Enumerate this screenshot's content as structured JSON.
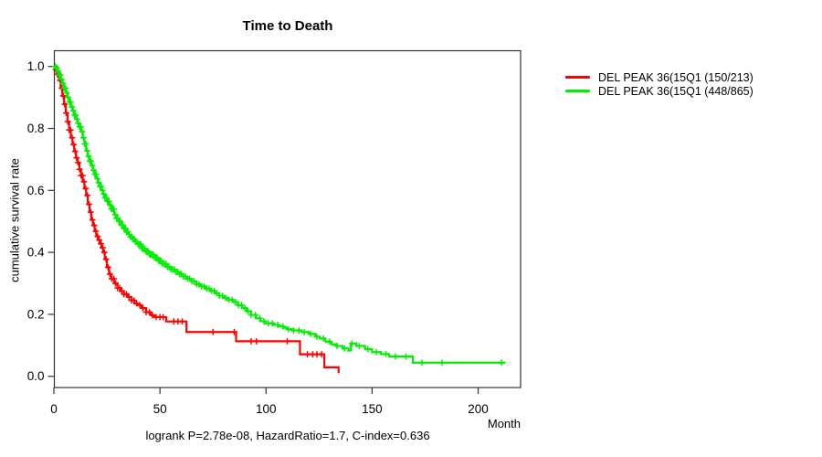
{
  "title": "Time to Death",
  "caption": "logrank P=2.78e-08, HazardRatio=1.7, C-index=0.636",
  "colors": {
    "series1": "#ff0000",
    "series2": "#00ee00",
    "axis": "#333333",
    "text": "#000000"
  },
  "legend": {
    "items": [
      {
        "label": "DEL PEAK 36(15Q1 (150/213)",
        "color": "#ff0000"
      },
      {
        "label": "DEL PEAK 36(15Q1 (448/865)",
        "color": "#00ee00"
      }
    ]
  },
  "chart_data": {
    "type": "line",
    "subtype": "kaplan-meier-step",
    "title": "Time to Death",
    "xlabel": "Month",
    "ylabel": "cumulative survival rate",
    "xlim": [
      0,
      220
    ],
    "ylim": [
      0,
      1
    ],
    "x_ticks": [
      0,
      50,
      100,
      150,
      200
    ],
    "x_tick_labels": [
      "0",
      "50",
      "100",
      "150",
      "200"
    ],
    "y_ticks": [
      0,
      0.2,
      0.4,
      0.6,
      0.8,
      1
    ],
    "y_tick_labels": [
      "0.0",
      "0.2",
      "0.4",
      "0.6",
      "0.8",
      "1.0"
    ],
    "grid": false,
    "legend_position": "right-outside",
    "series": [
      {
        "name": "DEL PEAK 36(15Q1 (150/213)",
        "color": "#ff0000",
        "points": [
          [
            0,
            1.0
          ],
          [
            0.8,
            0.99
          ],
          [
            1.6,
            0.975
          ],
          [
            2.4,
            0.955
          ],
          [
            3.2,
            0.93
          ],
          [
            4,
            0.905
          ],
          [
            4.8,
            0.878
          ],
          [
            5.6,
            0.85
          ],
          [
            6.4,
            0.822
          ],
          [
            7.2,
            0.795
          ],
          [
            8,
            0.77
          ],
          [
            8.8,
            0.748
          ],
          [
            9.6,
            0.726
          ],
          [
            10.4,
            0.705
          ],
          [
            11.2,
            0.69
          ],
          [
            12,
            0.668
          ],
          [
            12.8,
            0.648
          ],
          [
            13.6,
            0.628
          ],
          [
            14.4,
            0.606
          ],
          [
            15.2,
            0.584
          ],
          [
            16,
            0.555
          ],
          [
            16.8,
            0.53
          ],
          [
            17.6,
            0.505
          ],
          [
            18.4,
            0.487
          ],
          [
            19.2,
            0.468
          ],
          [
            20,
            0.452
          ],
          [
            20.8,
            0.44
          ],
          [
            21.6,
            0.428
          ],
          [
            22.4,
            0.415
          ],
          [
            23.2,
            0.4
          ],
          [
            24,
            0.378
          ],
          [
            25,
            0.352
          ],
          [
            26,
            0.33
          ],
          [
            27,
            0.315
          ],
          [
            28.4,
            0.3
          ],
          [
            30,
            0.285
          ],
          [
            31.5,
            0.275
          ],
          [
            33,
            0.265
          ],
          [
            34.9,
            0.256
          ],
          [
            36.5,
            0.245
          ],
          [
            38,
            0.235
          ],
          [
            39.2,
            0.23
          ],
          [
            41.4,
            0.22
          ],
          [
            43.5,
            0.207
          ],
          [
            45.7,
            0.197
          ],
          [
            47.5,
            0.191
          ],
          [
            52.9,
            0.177
          ],
          [
            62.5,
            0.143
          ],
          [
            85.9,
            0.113
          ],
          [
            116,
            0.071
          ],
          [
            127.5,
            0.029
          ],
          [
            134.2,
            0.01
          ]
        ],
        "censor_months": [
          0.9,
          1.6,
          2.3,
          3,
          3.7,
          4.4,
          5.1,
          5.8,
          6.5,
          7.2,
          7.9,
          8.6,
          9.3,
          10,
          10.7,
          11.4,
          12.1,
          12.8,
          13.5,
          14.2,
          15,
          15.8,
          16.6,
          17.4,
          18.2,
          19,
          19.8,
          20.6,
          21.4,
          22.2,
          23,
          23.8,
          24.6,
          25.5,
          26.4,
          27.3,
          28.2,
          29.1,
          30,
          31,
          32,
          33,
          34.2,
          35.4,
          36.6,
          37.8,
          39,
          40.5,
          42,
          43.5,
          45,
          46.5,
          48.2,
          50,
          51.5,
          56.5,
          58.5,
          60.5,
          75,
          85,
          93,
          95.5,
          110,
          119.5,
          122,
          124,
          126.2
        ]
      },
      {
        "name": "DEL PEAK 36(15Q1 (448/865)",
        "color": "#00ee00",
        "points": [
          [
            0,
            1.0
          ],
          [
            0.8,
            0.995
          ],
          [
            1.6,
            0.985
          ],
          [
            2.4,
            0.972
          ],
          [
            3.2,
            0.958
          ],
          [
            4,
            0.945
          ],
          [
            4.8,
            0.93
          ],
          [
            5.6,
            0.915
          ],
          [
            6.4,
            0.9
          ],
          [
            7.2,
            0.885
          ],
          [
            8,
            0.87
          ],
          [
            8.8,
            0.857
          ],
          [
            9.6,
            0.843
          ],
          [
            10.4,
            0.83
          ],
          [
            11.2,
            0.817
          ],
          [
            12,
            0.805
          ],
          [
            12.8,
            0.79
          ],
          [
            13.6,
            0.77
          ],
          [
            14.4,
            0.75
          ],
          [
            15.2,
            0.728
          ],
          [
            16,
            0.71
          ],
          [
            16.8,
            0.695
          ],
          [
            17.6,
            0.68
          ],
          [
            18.4,
            0.665
          ],
          [
            19.2,
            0.652
          ],
          [
            20,
            0.638
          ],
          [
            20.8,
            0.625
          ],
          [
            21.6,
            0.613
          ],
          [
            22.4,
            0.6
          ],
          [
            23.2,
            0.588
          ],
          [
            24.1,
            0.576
          ],
          [
            25,
            0.565
          ],
          [
            26,
            0.553
          ],
          [
            27,
            0.54
          ],
          [
            28.4,
            0.522
          ],
          [
            29.5,
            0.51
          ],
          [
            30.6,
            0.5
          ],
          [
            31.6,
            0.488
          ],
          [
            32.7,
            0.477
          ],
          [
            34,
            0.466
          ],
          [
            35,
            0.458
          ],
          [
            36,
            0.45
          ],
          [
            37,
            0.443
          ],
          [
            38.2,
            0.434
          ],
          [
            39.5,
            0.426
          ],
          [
            41.4,
            0.413
          ],
          [
            43,
            0.403
          ],
          [
            45,
            0.393
          ],
          [
            47,
            0.383
          ],
          [
            49,
            0.373
          ],
          [
            51,
            0.363
          ],
          [
            53,
            0.353
          ],
          [
            55,
            0.345
          ],
          [
            57,
            0.337
          ],
          [
            59,
            0.33
          ],
          [
            61,
            0.322
          ],
          [
            63,
            0.315
          ],
          [
            65,
            0.307
          ],
          [
            67.2,
            0.297
          ],
          [
            69,
            0.29
          ],
          [
            71.5,
            0.283
          ],
          [
            73.7,
            0.276
          ],
          [
            75.8,
            0.268
          ],
          [
            78,
            0.26
          ],
          [
            80,
            0.253
          ],
          [
            82,
            0.247
          ],
          [
            84.4,
            0.24
          ],
          [
            86.6,
            0.23
          ],
          [
            88.7,
            0.22
          ],
          [
            90.9,
            0.21
          ],
          [
            93,
            0.198
          ],
          [
            95.2,
            0.187
          ],
          [
            97.3,
            0.178
          ],
          [
            99.5,
            0.171
          ],
          [
            103.8,
            0.166
          ],
          [
            106,
            0.161
          ],
          [
            108.1,
            0.157
          ],
          [
            110.3,
            0.152
          ],
          [
            112.4,
            0.148
          ],
          [
            116.7,
            0.143
          ],
          [
            120,
            0.137
          ],
          [
            123.2,
            0.128
          ],
          [
            125.3,
            0.122
          ],
          [
            128,
            0.112
          ],
          [
            130.9,
            0.103
          ],
          [
            133.1,
            0.098
          ],
          [
            136,
            0.09
          ],
          [
            138.8,
            0.083
          ],
          [
            140,
            0.106
          ],
          [
            142.6,
            0.098
          ],
          [
            146.7,
            0.088
          ],
          [
            150,
            0.078
          ],
          [
            154.1,
            0.072
          ],
          [
            158,
            0.064
          ],
          [
            169.2,
            0.044
          ],
          [
            212.9,
            0.044
          ]
        ],
        "censor_months": [
          0.7,
          1.3,
          1.9,
          2.5,
          3.1,
          3.7,
          4.3,
          4.9,
          5.5,
          6.1,
          6.7,
          7.3,
          7.9,
          8.5,
          9.1,
          9.7,
          10.3,
          10.9,
          11.5,
          12.1,
          12.7,
          13.3,
          13.9,
          14.5,
          15.1,
          15.7,
          16.3,
          16.9,
          17.5,
          18.1,
          18.7,
          19.3,
          19.9,
          20.5,
          21.1,
          21.7,
          22.3,
          22.9,
          23.5,
          24.1,
          24.7,
          25.3,
          25.9,
          26.5,
          27.1,
          27.7,
          28.3,
          28.9,
          29.5,
          30.1,
          30.7,
          31.3,
          31.9,
          32.5,
          33.1,
          33.7,
          34.3,
          34.9,
          35.5,
          36.1,
          36.7,
          37.3,
          37.9,
          38.5,
          39.1,
          39.7,
          40.3,
          40.9,
          41.5,
          42.1,
          42.7,
          43.3,
          43.9,
          44.5,
          45.1,
          45.7,
          46.3,
          46.9,
          47.5,
          48.1,
          48.7,
          49.3,
          49.9,
          50.5,
          51.2,
          52,
          52.8,
          53.6,
          54.4,
          55.2,
          56,
          56.8,
          57.6,
          58.4,
          59.2,
          60,
          61,
          62,
          63,
          64,
          65,
          66,
          67.2,
          68.4,
          69.6,
          70.8,
          72,
          73.2,
          74.4,
          75.6,
          76.8,
          78,
          79.5,
          81,
          82.5,
          84,
          85.5,
          87,
          88.5,
          90,
          91.5,
          93,
          95,
          97,
          99,
          101,
          103,
          105.5,
          108,
          110.5,
          113,
          115.5,
          118,
          121,
          124,
          127,
          130,
          133.5,
          137,
          140.5,
          144,
          148,
          152,
          156.5,
          161,
          166,
          173.5,
          183,
          211
        ]
      }
    ]
  }
}
